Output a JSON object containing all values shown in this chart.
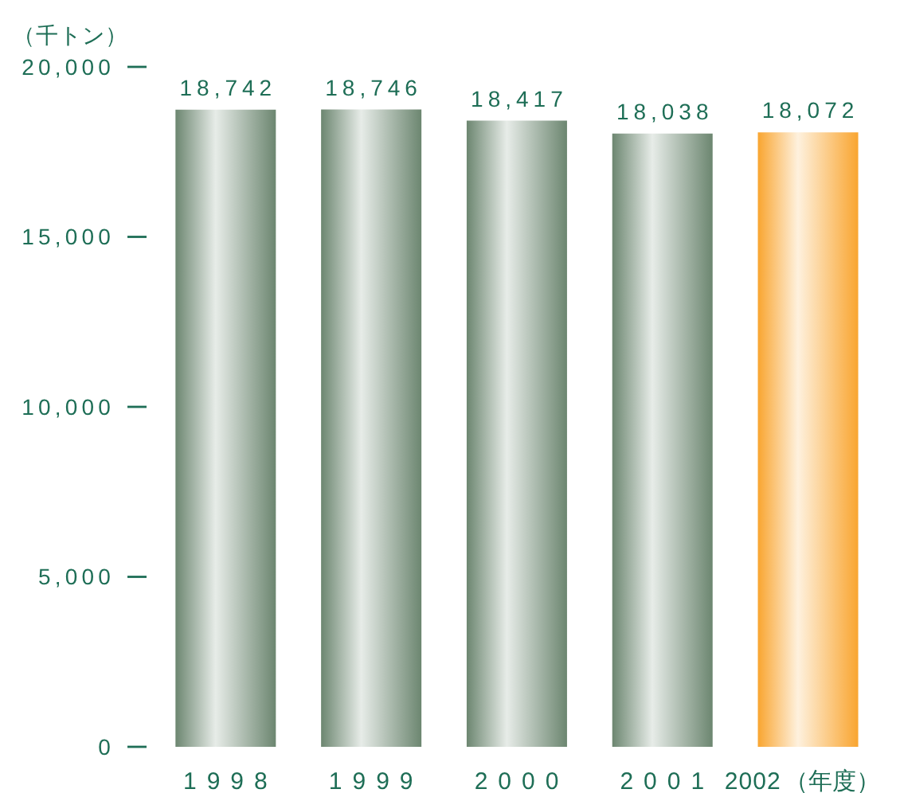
{
  "chart_data": {
    "type": "bar",
    "ylabel": "（千トン）",
    "xlabel": "（年度）",
    "categories": [
      "1998",
      "1999",
      "2000",
      "2001",
      "2002"
    ],
    "values": [
      18742,
      18746,
      18417,
      18038,
      18072
    ],
    "colors": [
      "#6c8670",
      "#6c8670",
      "#6c8670",
      "#6c8670",
      "#f9a530"
    ],
    "value_labels": [
      "18,742",
      "18,746",
      "18,417",
      "18,038",
      "18,072"
    ],
    "ylim": [
      0,
      20000
    ],
    "yticks": [
      {
        "value": 0,
        "label": "0"
      },
      {
        "value": 5000,
        "label": "5,000"
      },
      {
        "value": 10000,
        "label": "10,000"
      },
      {
        "value": 15000,
        "label": "15,000"
      },
      {
        "value": 20000,
        "label": "20,000"
      }
    ]
  }
}
